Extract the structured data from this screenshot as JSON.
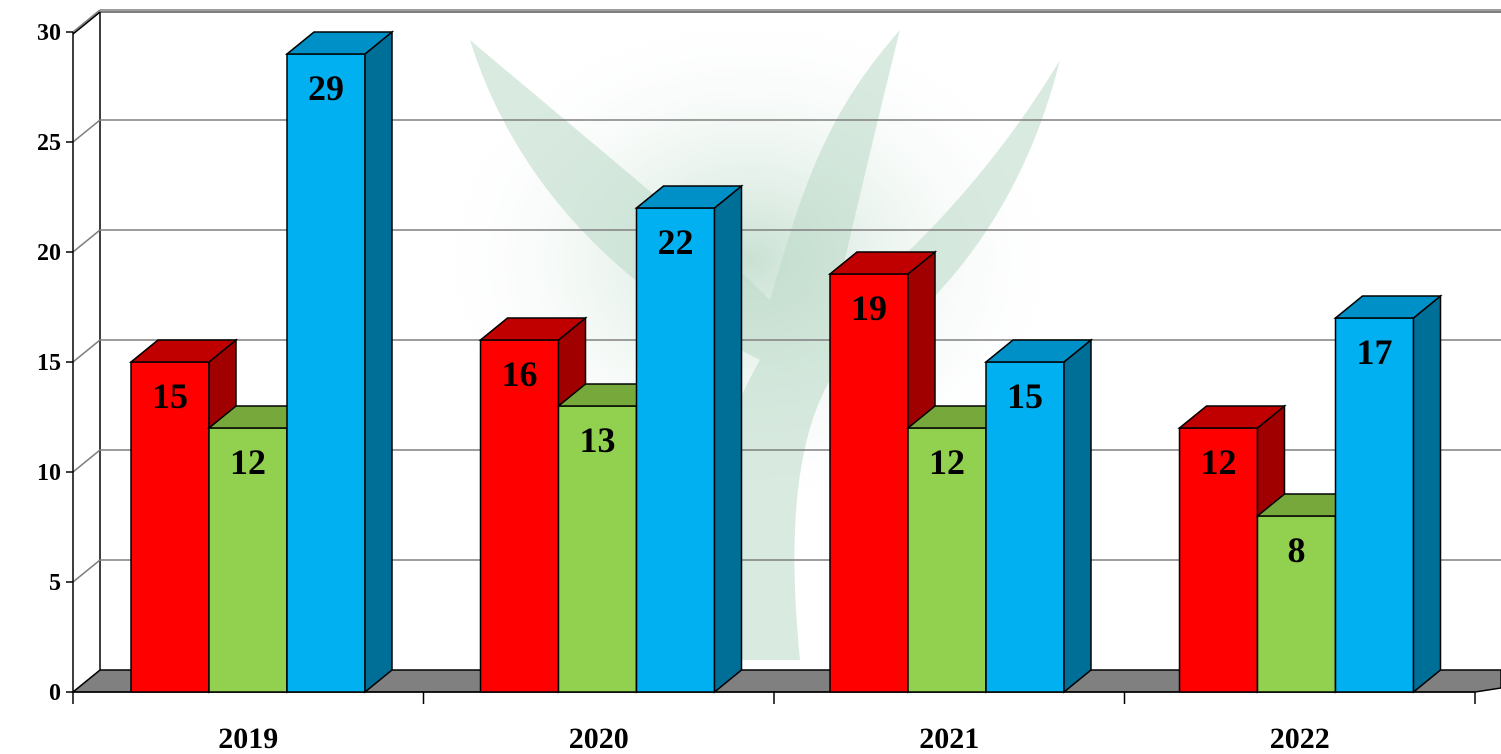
{
  "chart_data": {
    "type": "bar",
    "title": "",
    "xlabel": "",
    "ylabel": "",
    "categories": [
      "2019",
      "2020",
      "2021",
      "2022"
    ],
    "series": [
      {
        "values": [
          15,
          16,
          19,
          12
        ],
        "color": "#FF0000",
        "side_color": "#A00000",
        "top_color": "#C00000"
      },
      {
        "values": [
          12,
          13,
          12,
          8
        ],
        "color": "#92D050",
        "side_color": "#5E8A2E",
        "top_color": "#77A83C"
      },
      {
        "values": [
          29,
          22,
          15,
          17
        ],
        "color": "#00B0F0",
        "side_color": "#006F97",
        "top_color": "#0090C8"
      }
    ],
    "ylim": [
      0,
      30
    ],
    "yticks": [
      "0",
      "5",
      "10",
      "15",
      "20",
      "25",
      "30"
    ],
    "grid": true,
    "legend": "none",
    "floor_color": "#808080",
    "gridline_color": "#7F7F7F",
    "background_watermark_color": "#B9D9C6"
  }
}
